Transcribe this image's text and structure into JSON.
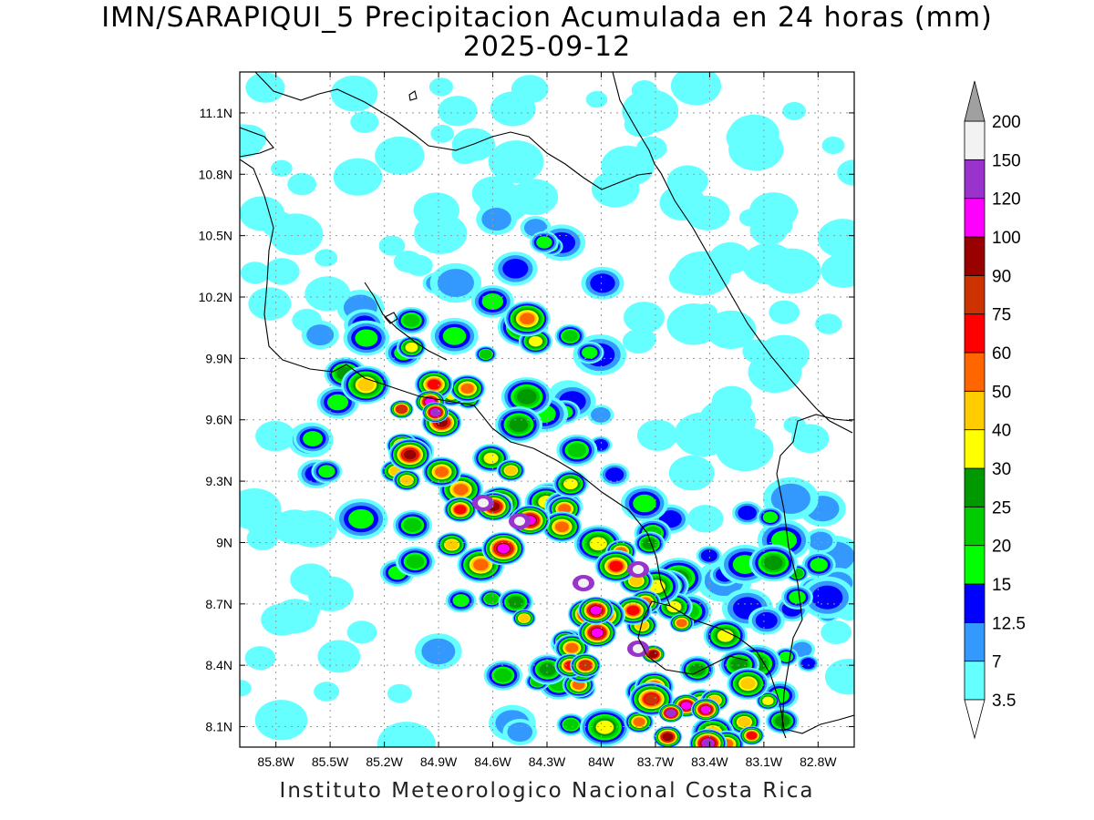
{
  "title_line1": "IMN/SARAPIQUI_5 Precipitacion Acumulada en 24 horas (mm)",
  "title_line2": "2025-09-12",
  "footer": "Instituto Meteorologico Nacional Costa Rica",
  "map": {
    "lon_range": [
      -86.0,
      -82.6
    ],
    "lat_range": [
      8.0,
      11.3
    ],
    "x_ticks": [
      "85.8W",
      "85.5W",
      "85.2W",
      "84.9W",
      "84.6W",
      "84.3W",
      "84W",
      "83.7W",
      "83.4W",
      "83.1W",
      "82.8W"
    ],
    "x_tick_values": [
      -85.8,
      -85.5,
      -85.2,
      -84.9,
      -84.6,
      -84.3,
      -84.0,
      -83.7,
      -83.4,
      -83.1,
      -82.8
    ],
    "y_ticks": [
      "11.1N",
      "10.8N",
      "10.5N",
      "10.2N",
      "9.9N",
      "9.6N",
      "9.3N",
      "9N",
      "8.7N",
      "8.4N",
      "8.1N"
    ],
    "y_tick_values": [
      11.1,
      10.8,
      10.5,
      10.2,
      9.9,
      9.6,
      9.3,
      9.0,
      8.7,
      8.4,
      8.1
    ],
    "grid": "dotted"
  },
  "colorbar": {
    "levels": [
      "3.5",
      "7",
      "12.5",
      "15",
      "20",
      "25",
      "30",
      "40",
      "50",
      "60",
      "75",
      "90",
      "100",
      "120",
      "150",
      "200"
    ],
    "colors": [
      "#66ffff",
      "#3399ff",
      "#0000ff",
      "#00ff00",
      "#00cc00",
      "#009900",
      "#ffff00",
      "#ffcc00",
      "#ff6600",
      "#ff0000",
      "#cc3300",
      "#990000",
      "#ff00ff",
      "#9933cc",
      "#f2f2f2",
      "#a0a0a0"
    ],
    "under_color": "#ffffff"
  }
}
